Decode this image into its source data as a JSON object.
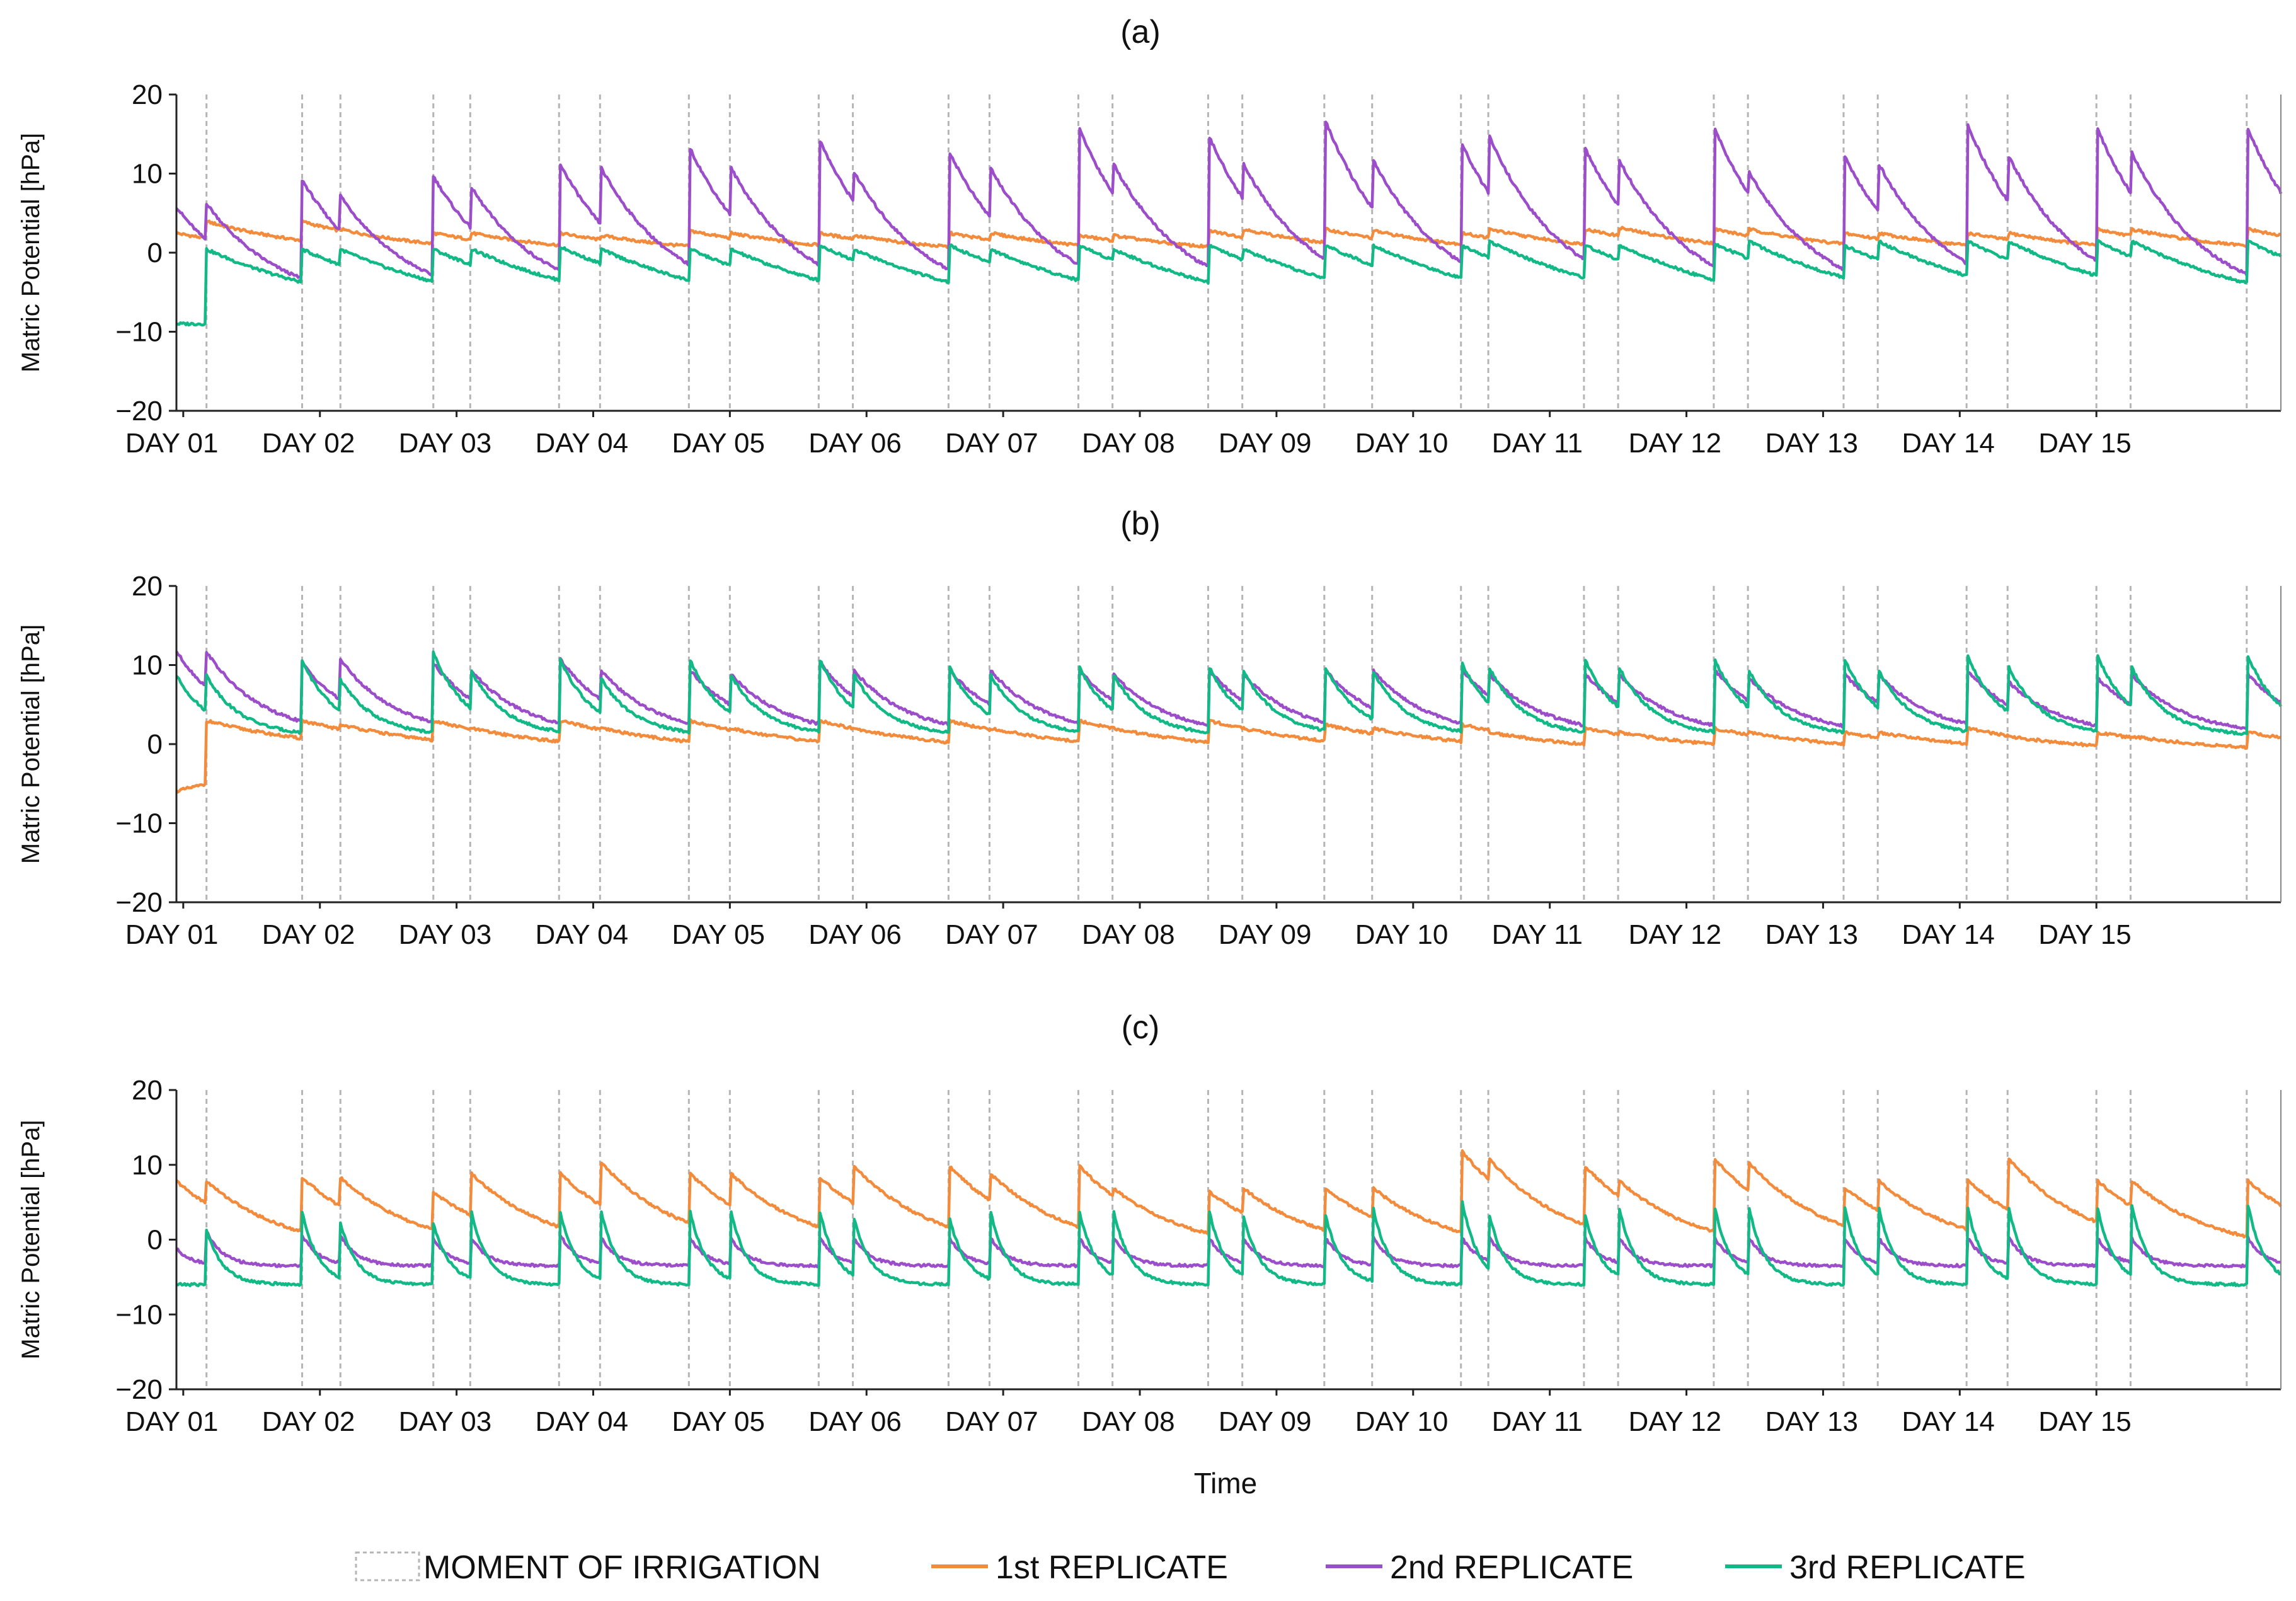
{
  "chart_data": {
    "type": "line",
    "x_categories": [
      "DAY 01",
      "DAY 02",
      "DAY 03",
      "DAY 04",
      "DAY 05",
      "DAY 06",
      "DAY 07",
      "DAY 08",
      "DAY 09",
      "DAY 10",
      "DAY 11",
      "DAY 12",
      "DAY 13",
      "DAY 14",
      "DAY 15"
    ],
    "x_label": "Time",
    "y_label": "Matric Potential [hPa]",
    "y_ticks": [
      "20",
      "10",
      "0",
      "−10",
      "−20"
    ],
    "ylim": [
      -20,
      20
    ],
    "xlim_days": [
      0,
      15.4
    ],
    "irrigation_times_days": [
      0.22,
      0.92,
      1.2,
      1.88,
      2.15,
      2.8,
      3.1,
      3.75,
      4.05,
      4.7,
      4.95,
      5.65,
      5.95,
      6.6,
      6.85,
      7.55,
      7.8,
      8.4,
      8.75,
      9.4,
      9.6,
      10.3,
      10.55,
      11.25,
      11.5,
      12.2,
      12.45,
      13.1,
      13.4,
      14.05,
      14.3,
      15.15
    ],
    "legend": {
      "irrigation": "MOMENT OF IRRIGATION",
      "series_names": [
        "1st REPLICATE",
        "2nd REPLICATE",
        "3rd REPLICATE"
      ]
    },
    "colors": {
      "rep1": "#f28c3c",
      "rep2": "#9b4dca",
      "rep3": "#12b886",
      "irrigation": "#b5b5b5",
      "axis": "#222222"
    },
    "panels": [
      {
        "title": "(a)",
        "series": [
          {
            "name": "1st REPLICATE",
            "start": 2.5,
            "peaks": [
              4,
              4,
              3,
              2.5,
              2.5,
              2.5,
              2.2,
              2.8,
              2.5,
              2.5,
              2.2,
              2.5,
              2.5,
              2.2,
              2.2,
              2.8,
              3,
              3,
              2.8,
              2.5,
              3,
              3,
              3.2,
              3,
              3,
              2.5,
              2.5,
              2.5,
              2.5,
              3,
              3,
              3
            ],
            "decay_to": -0.5,
            "tau": 0.9
          },
          {
            "name": "2nd REPLICATE",
            "start": 6,
            "peaks": [
              6.5,
              9.5,
              7.5,
              10,
              8.5,
              11.5,
              11,
              13.5,
              11,
              14.5,
              10.5,
              13,
              11,
              16,
              11.5,
              15,
              11.5,
              17,
              12,
              14,
              15,
              13.5,
              12,
              16,
              10.5,
              12.5,
              11.5,
              16.5,
              12.5,
              16,
              13,
              16
            ],
            "decay_to": -7,
            "tau": 0.55
          },
          {
            "name": "3rd REPLICATE",
            "start": -9,
            "peaks": [
              0.5,
              0.5,
              0.5,
              0.5,
              0.5,
              0.8,
              0.5,
              0.5,
              0.5,
              1,
              0.5,
              1,
              0.5,
              1,
              0.5,
              1,
              0.5,
              1,
              1,
              1,
              1.5,
              1,
              1,
              1.2,
              1.5,
              1,
              1.5,
              1.5,
              1.5,
              1.5,
              1.5,
              1.5
            ],
            "decay_to": -9,
            "tau": 1.2
          }
        ]
      },
      {
        "title": "(b)",
        "series": [
          {
            "name": "1st REPLICATE",
            "start": -6,
            "peaks": [
              3,
              3,
              2.5,
              3,
              2,
              3,
              2,
              3,
              2,
              3,
              2,
              3,
              2,
              3,
              2,
              3,
              2,
              2.5,
              2,
              2.5,
              1.5,
              2,
              1.5,
              2,
              1.5,
              1.5,
              1.5,
              2,
              1,
              1.5,
              1,
              1.5
            ],
            "decay_to": -1.5,
            "tau": 1.0
          },
          {
            "name": "2nd REPLICATE",
            "start": 12,
            "peaks": [
              12,
              10.5,
              11,
              10.5,
              9.5,
              11,
              9.5,
              9.5,
              9,
              10.5,
              9.5,
              9.5,
              9.5,
              9.5,
              9,
              9.5,
              9,
              9.5,
              9.5,
              9.5,
              9,
              9,
              9,
              9.5,
              8.5,
              9,
              9,
              9.5,
              8,
              8.5,
              9,
              9
            ],
            "decay_to": 1,
            "tau": 0.4
          },
          {
            "name": "3rd REPLICATE",
            "start": 9,
            "peaks": [
              9,
              11,
              8.5,
              12,
              9.5,
              11,
              8.5,
              11,
              9,
              11,
              9,
              10,
              9,
              10,
              9,
              10,
              9.5,
              10,
              9.5,
              10.5,
              10,
              11,
              10,
              11,
              9.5,
              11,
              9.5,
              11.5,
              10,
              11.5,
              10,
              11.5
            ],
            "decay_to": 1,
            "tau": 0.25
          }
        ]
      },
      {
        "title": "(c)",
        "series": [
          {
            "name": "1st REPLICATE",
            "start": 8,
            "peaks": [
              8,
              8.5,
              8.5,
              6.5,
              9,
              9,
              10.5,
              9,
              9,
              8.5,
              10,
              10,
              9,
              10,
              7,
              6.5,
              7,
              7,
              7,
              12,
              11,
              10,
              8,
              11,
              10.5,
              7,
              8,
              8,
              11,
              8,
              8,
              8
            ],
            "decay_to": -2,
            "tau": 0.6
          },
          {
            "name": "2nd REPLICATE",
            "start": -1,
            "peaks": [
              1.5,
              1,
              1,
              0.5,
              0.5,
              1,
              0.5,
              0.5,
              0.5,
              0.5,
              0.5,
              0.5,
              0.5,
              0.5,
              0.5,
              0.5,
              0.5,
              0.5,
              0.5,
              0.5,
              0.5,
              0.5,
              0.5,
              0.5,
              0.5,
              0.5,
              0.5,
              0.5,
              0.5,
              0.5,
              0.5,
              0.5
            ],
            "decay_to": -3.5,
            "tau": 0.12
          },
          {
            "name": "3rd REPLICATE",
            "start": -6,
            "peaks": [
              2,
              4.5,
              3,
              3,
              4.5,
              4.5,
              4.5,
              4.5,
              4.5,
              4.5,
              3.5,
              3.5,
              4.5,
              4.5,
              4.5,
              4.5,
              4,
              4,
              5,
              6,
              4,
              4,
              5,
              5,
              5,
              5,
              5,
              5,
              5,
              5,
              5.5,
              5.5
            ],
            "decay_to": -6,
            "tau": 0.12
          }
        ]
      }
    ]
  }
}
